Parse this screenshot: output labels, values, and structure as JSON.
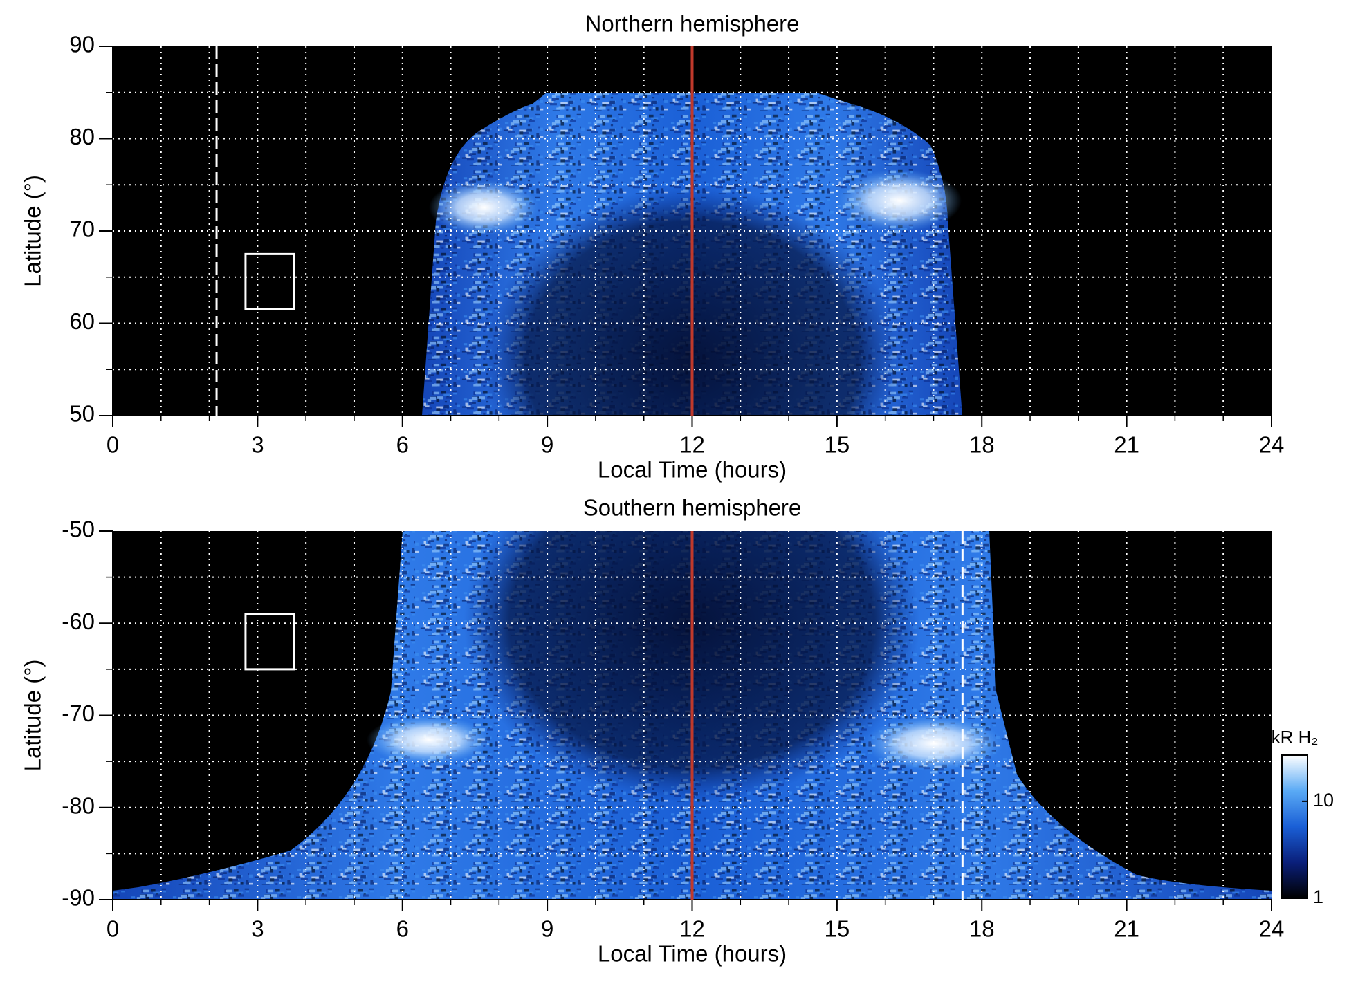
{
  "chart_data": [
    {
      "type": "heatmap",
      "title": "Northern hemisphere",
      "xlabel": "Local Time (hours)",
      "ylabel": "Latitude (°)",
      "xlim": [
        0,
        24
      ],
      "ylim": [
        50,
        90
      ],
      "xticks": [
        0,
        3,
        6,
        9,
        12,
        15,
        18,
        21,
        24
      ],
      "yticks": [
        50,
        60,
        70,
        80,
        90
      ],
      "grid_x": [
        1,
        2,
        3,
        4,
        5,
        6,
        7,
        8,
        9,
        10,
        11,
        12,
        13,
        14,
        15,
        16,
        17,
        18,
        19,
        20,
        21,
        22,
        23
      ],
      "grid_y": [
        55,
        60,
        65,
        70,
        75,
        80,
        85
      ],
      "reference_line": {
        "x": 12,
        "color": "#c0392b"
      },
      "dashed_line": {
        "x": 2.15,
        "color": "#ffffff"
      },
      "box": {
        "xlim": [
          2.75,
          3.75
        ],
        "ylim": [
          61.5,
          67.5
        ],
        "color": "#ffffff"
      }
    },
    {
      "type": "heatmap",
      "title": "Southern hemisphere",
      "xlabel": "Local Time (hours)",
      "ylabel": "Latitude (°)",
      "xlim": [
        0,
        24
      ],
      "ylim": [
        -90,
        -50
      ],
      "xticks": [
        0,
        3,
        6,
        9,
        12,
        15,
        18,
        21,
        24
      ],
      "yticks": [
        -90,
        -80,
        -70,
        -60,
        -50
      ],
      "grid_x": [
        1,
        2,
        3,
        4,
        5,
        6,
        7,
        8,
        9,
        10,
        11,
        12,
        13,
        14,
        15,
        16,
        17,
        18,
        19,
        20,
        21,
        22,
        23
      ],
      "grid_y": [
        -85,
        -80,
        -75,
        -70,
        -65,
        -60,
        -55
      ],
      "reference_line": {
        "x": 12,
        "color": "#c0392b"
      },
      "dashed_line": {
        "x": 17.6,
        "color": "#ffffff"
      },
      "box": {
        "xlim": [
          2.75,
          3.75
        ],
        "ylim": [
          -65,
          -59
        ],
        "color": "#ffffff"
      },
      "colorbar": {
        "label": "kR H₂",
        "lim": [
          1,
          30
        ],
        "ticks": [
          1,
          10
        ],
        "log": true,
        "colors": [
          "#000000",
          "#0a1f7a",
          "#1a5fd6",
          "#5aaaf5",
          "#ffffff"
        ]
      }
    }
  ]
}
